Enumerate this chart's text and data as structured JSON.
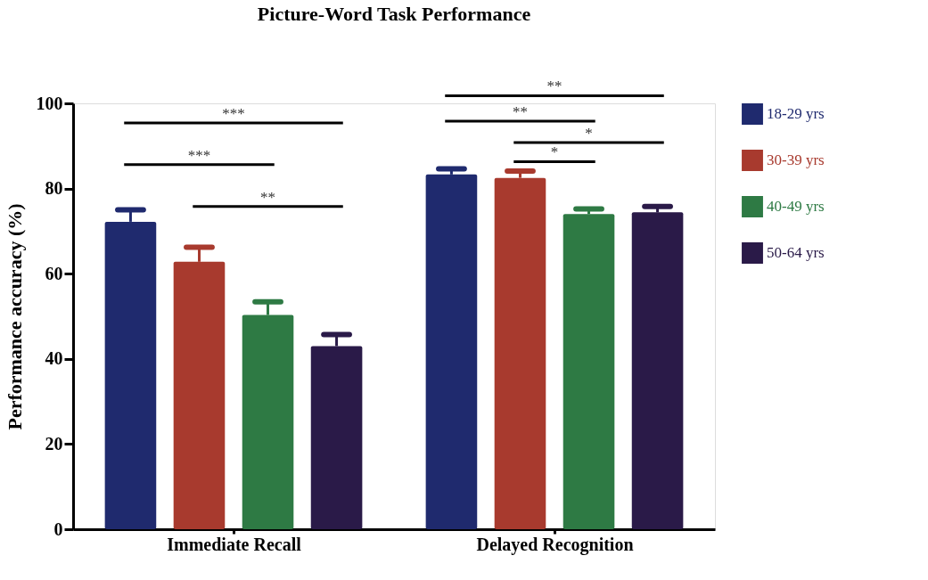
{
  "chart_data": {
    "type": "bar",
    "title": "Picture-Word Task Performance",
    "ylabel": "Performance accuracy (%)",
    "categories": [
      "Immediate Recall",
      "Delayed Recognition"
    ],
    "series": [
      {
        "name": "18-29 yrs",
        "color": "#1f2a6e",
        "values": [
          72.2,
          83.3
        ],
        "errors": [
          2.8,
          1.3
        ]
      },
      {
        "name": "30-39 yrs",
        "color": "#a83a2e",
        "values": [
          62.8,
          82.5
        ],
        "errors": [
          3.4,
          1.6
        ]
      },
      {
        "name": "40-49 yrs",
        "color": "#2e7a44",
        "values": [
          50.3,
          74.0
        ],
        "errors": [
          3.1,
          1.2
        ]
      },
      {
        "name": "50-64 yrs",
        "color": "#2a1a48",
        "values": [
          43.0,
          74.4
        ],
        "errors": [
          2.7,
          1.4
        ]
      }
    ],
    "ylim": [
      0,
      100
    ],
    "yticks": [
      0,
      20,
      40,
      60,
      80,
      100
    ],
    "grid": false,
    "legend": "top right",
    "annotations": [
      "***",
      "***",
      "**",
      "**",
      "**",
      "*",
      "*"
    ]
  }
}
